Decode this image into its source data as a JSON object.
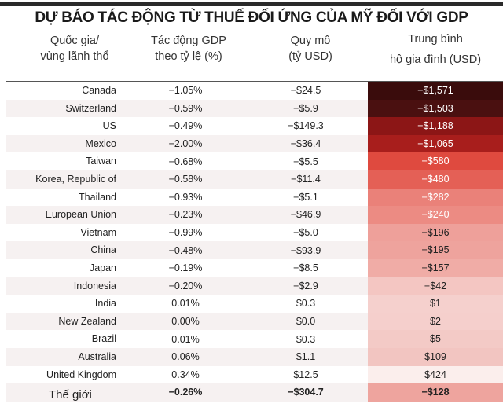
{
  "title": "DỰ BÁO TÁC ĐỘNG TỪ THUẾ ĐỐI ỨNG CỦA MỸ ĐỐI VỚI GDP",
  "headers": {
    "country": [
      "Quốc gia/",
      "vùng lãnh thổ"
    ],
    "gdp_pct": [
      "Tác động GDP",
      "theo tỷ lệ (%)"
    ],
    "scale": [
      "Quy mô",
      "(tỷ USD)"
    ],
    "household": [
      "Trung bình",
      "hộ gia đình (USD)"
    ]
  },
  "rows": [
    {
      "country": "Canada",
      "gdp_pct": "−1.05%",
      "scale": "−$24.5",
      "household": "−$1,571",
      "color": "#3a0c0c",
      "text": "#fff"
    },
    {
      "country": "Switzerland",
      "gdp_pct": "−0.59%",
      "scale": "−$5.9",
      "household": "−$1,503",
      "color": "#4a1010",
      "text": "#fff"
    },
    {
      "country": "US",
      "gdp_pct": "−0.49%",
      "scale": "−$149.3",
      "household": "−$1,188",
      "color": "#8c1616",
      "text": "#fff"
    },
    {
      "country": "Mexico",
      "gdp_pct": "−2.00%",
      "scale": "−$36.4",
      "household": "−$1,065",
      "color": "#a81e1c",
      "text": "#fff"
    },
    {
      "country": "Taiwan",
      "gdp_pct": "−0.68%",
      "scale": "−$5.5",
      "household": "−$580",
      "color": "#df4a3f",
      "text": "#fff"
    },
    {
      "country": "Korea, Republic of",
      "gdp_pct": "−0.58%",
      "scale": "−$11.4",
      "household": "−$480",
      "color": "#e46056",
      "text": "#fff"
    },
    {
      "country": "Thailand",
      "gdp_pct": "−0.93%",
      "scale": "−$5.1",
      "household": "−$282",
      "color": "#ea8179",
      "text": "#fff"
    },
    {
      "country": "European Union",
      "gdp_pct": "−0.23%",
      "scale": "−$46.9",
      "household": "−$240",
      "color": "#ec8b83",
      "text": "#fff"
    },
    {
      "country": "Vietnam",
      "gdp_pct": "−0.99%",
      "scale": "−$5.0",
      "household": "−$196",
      "color": "#eea09a",
      "text": "#222"
    },
    {
      "country": "China",
      "gdp_pct": "−0.48%",
      "scale": "−$93.9",
      "household": "−$195",
      "color": "#eea39d",
      "text": "#222"
    },
    {
      "country": "Japan",
      "gdp_pct": "−0.19%",
      "scale": "−$8.5",
      "household": "−$157",
      "color": "#f0aca6",
      "text": "#222"
    },
    {
      "country": "Indonesia",
      "gdp_pct": "−0.20%",
      "scale": "−$2.9",
      "household": "−$42",
      "color": "#f4c6c2",
      "text": "#222"
    },
    {
      "country": "India",
      "gdp_pct": "0.01%",
      "scale": "$0.3",
      "household": "$1",
      "color": "#f5d0cd",
      "text": "#222"
    },
    {
      "country": "New Zealand",
      "gdp_pct": "0.00%",
      "scale": "$0.0",
      "household": "$2",
      "color": "#f5cfcc",
      "text": "#222"
    },
    {
      "country": "Brazil",
      "gdp_pct": "0.01%",
      "scale": "$0.3",
      "household": "$5",
      "color": "#f3cac6",
      "text": "#222"
    },
    {
      "country": "Australia",
      "gdp_pct": "0.06%",
      "scale": "$1.1",
      "household": "$109",
      "color": "#f2c5c1",
      "text": "#222"
    },
    {
      "country": "United Kingdom",
      "gdp_pct": "0.34%",
      "scale": "$12.5",
      "household": "$424",
      "color": "#fbeeec",
      "text": "#222"
    }
  ],
  "total": {
    "country": "Thế giới",
    "gdp_pct": "−0.26%",
    "scale": "−$304.7",
    "household": "−$128",
    "color": "#eea49e"
  }
}
